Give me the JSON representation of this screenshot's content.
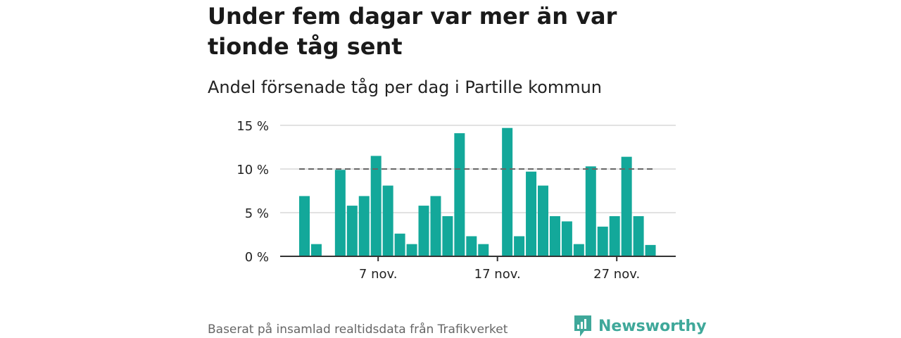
{
  "title": "Under fem dagar var mer än var tionde tåg sent",
  "subtitle": "Andel försenade tåg per dag i Partille kommun",
  "source": "Baserat på insamlad realtidsdata från Trafikverket",
  "brand": {
    "name": "Newsworthy",
    "icon": "newsworthy-logo-icon",
    "color": "#3fa89a"
  },
  "chart_data": {
    "type": "bar",
    "title": "",
    "xlabel": "",
    "ylabel": "",
    "ylim": [
      0,
      15
    ],
    "yticks": [
      0,
      5,
      10,
      15
    ],
    "ytick_labels": [
      "0 %",
      "5 %",
      "10 %",
      "15 %"
    ],
    "x_range": [
      "1 nov.",
      "30 nov."
    ],
    "xtick_labels": [
      {
        "label": "7 nov.",
        "day": 7
      },
      {
        "label": "17 nov.",
        "day": 17
      },
      {
        "label": "27 nov.",
        "day": 27
      }
    ],
    "reference_line": {
      "value": 10,
      "style": "dashed"
    },
    "bar_color": "#13a89a",
    "grid": true,
    "days": [
      1,
      2,
      3,
      4,
      5,
      6,
      7,
      8,
      9,
      10,
      11,
      12,
      13,
      14,
      15,
      16,
      17,
      18,
      19,
      20,
      21,
      22,
      23,
      24,
      25,
      26,
      27,
      28,
      29,
      30
    ],
    "values": [
      6.9,
      1.4,
      0,
      9.9,
      5.8,
      6.9,
      11.5,
      8.1,
      2.6,
      1.4,
      5.8,
      6.9,
      4.6,
      14.1,
      2.3,
      1.4,
      0,
      14.7,
      2.3,
      9.7,
      8.1,
      4.6,
      4.0,
      1.4,
      10.3,
      3.4,
      4.6,
      11.4,
      4.6,
      1.3
    ]
  }
}
